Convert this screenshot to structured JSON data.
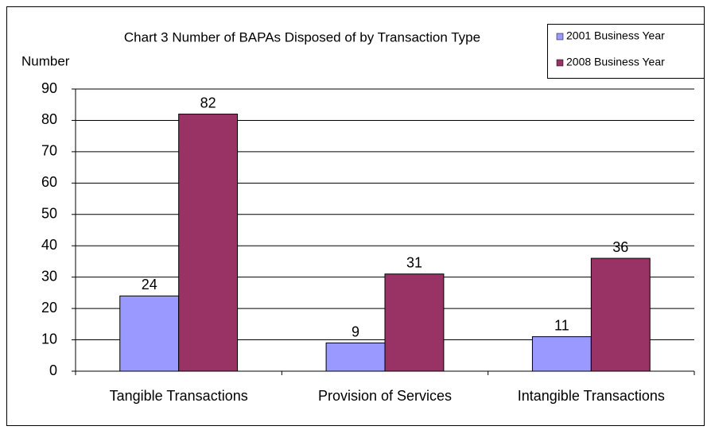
{
  "chart_data": {
    "type": "bar",
    "title": "Chart 3 Number of BAPAs Disposed of by Transaction Type",
    "y_label": "Number",
    "categories": [
      "Tangible Transactions",
      "Provision of Services",
      "Intangible Transactions"
    ],
    "series": [
      {
        "name": "2001 Business Year",
        "color": "#9999ff",
        "values": [
          24,
          9,
          11
        ]
      },
      {
        "name": "2008 Business Year",
        "color": "#993366",
        "values": [
          82,
          31,
          36
        ]
      }
    ],
    "ylim": [
      0,
      90
    ],
    "yticks": [
      0,
      10,
      20,
      30,
      40,
      50,
      60,
      70,
      80,
      90
    ],
    "grid": true,
    "legend": "top-right"
  }
}
